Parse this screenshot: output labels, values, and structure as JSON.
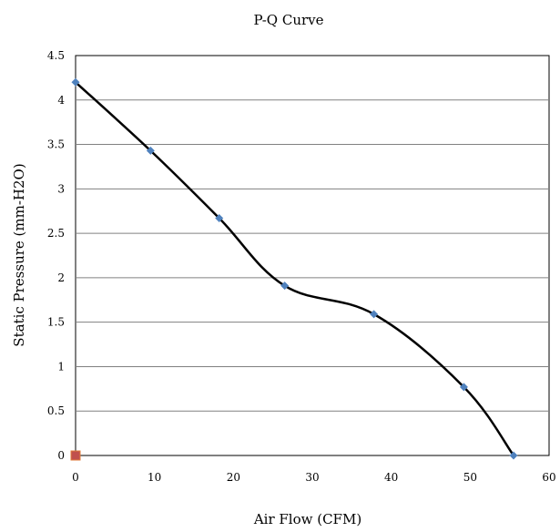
{
  "chart_data": {
    "type": "scatter",
    "title": "P-Q Curve",
    "xlabel": "Air Flow (CFM)",
    "ylabel": "Static Pressure (mm-H2O)",
    "xlim": [
      0,
      60
    ],
    "ylim": [
      0,
      4.5
    ],
    "xticks": [
      "0",
      "10",
      "20",
      "30",
      "40",
      "50",
      "60"
    ],
    "yticks": [
      "0",
      "0.5",
      "1",
      "1.5",
      "2",
      "2.5",
      "3",
      "3.5",
      "4",
      "4.5"
    ],
    "grid": "horizontal",
    "series": [
      {
        "marker": "diamond",
        "color": "#4f81bd",
        "line_color": "#000000",
        "smooth": true,
        "points": [
          {
            "x": 0,
            "y": 4.2
          },
          {
            "x": 9.5,
            "y": 3.43
          },
          {
            "x": 18.2,
            "y": 2.67
          },
          {
            "x": 26.5,
            "y": 1.91
          },
          {
            "x": 37.8,
            "y": 1.59
          },
          {
            "x": 49.2,
            "y": 0.77
          },
          {
            "x": 55.5,
            "y": 0
          }
        ]
      },
      {
        "marker": "square",
        "color": "#c0504d",
        "points": [
          {
            "x": 0,
            "y": 0
          }
        ]
      }
    ]
  }
}
